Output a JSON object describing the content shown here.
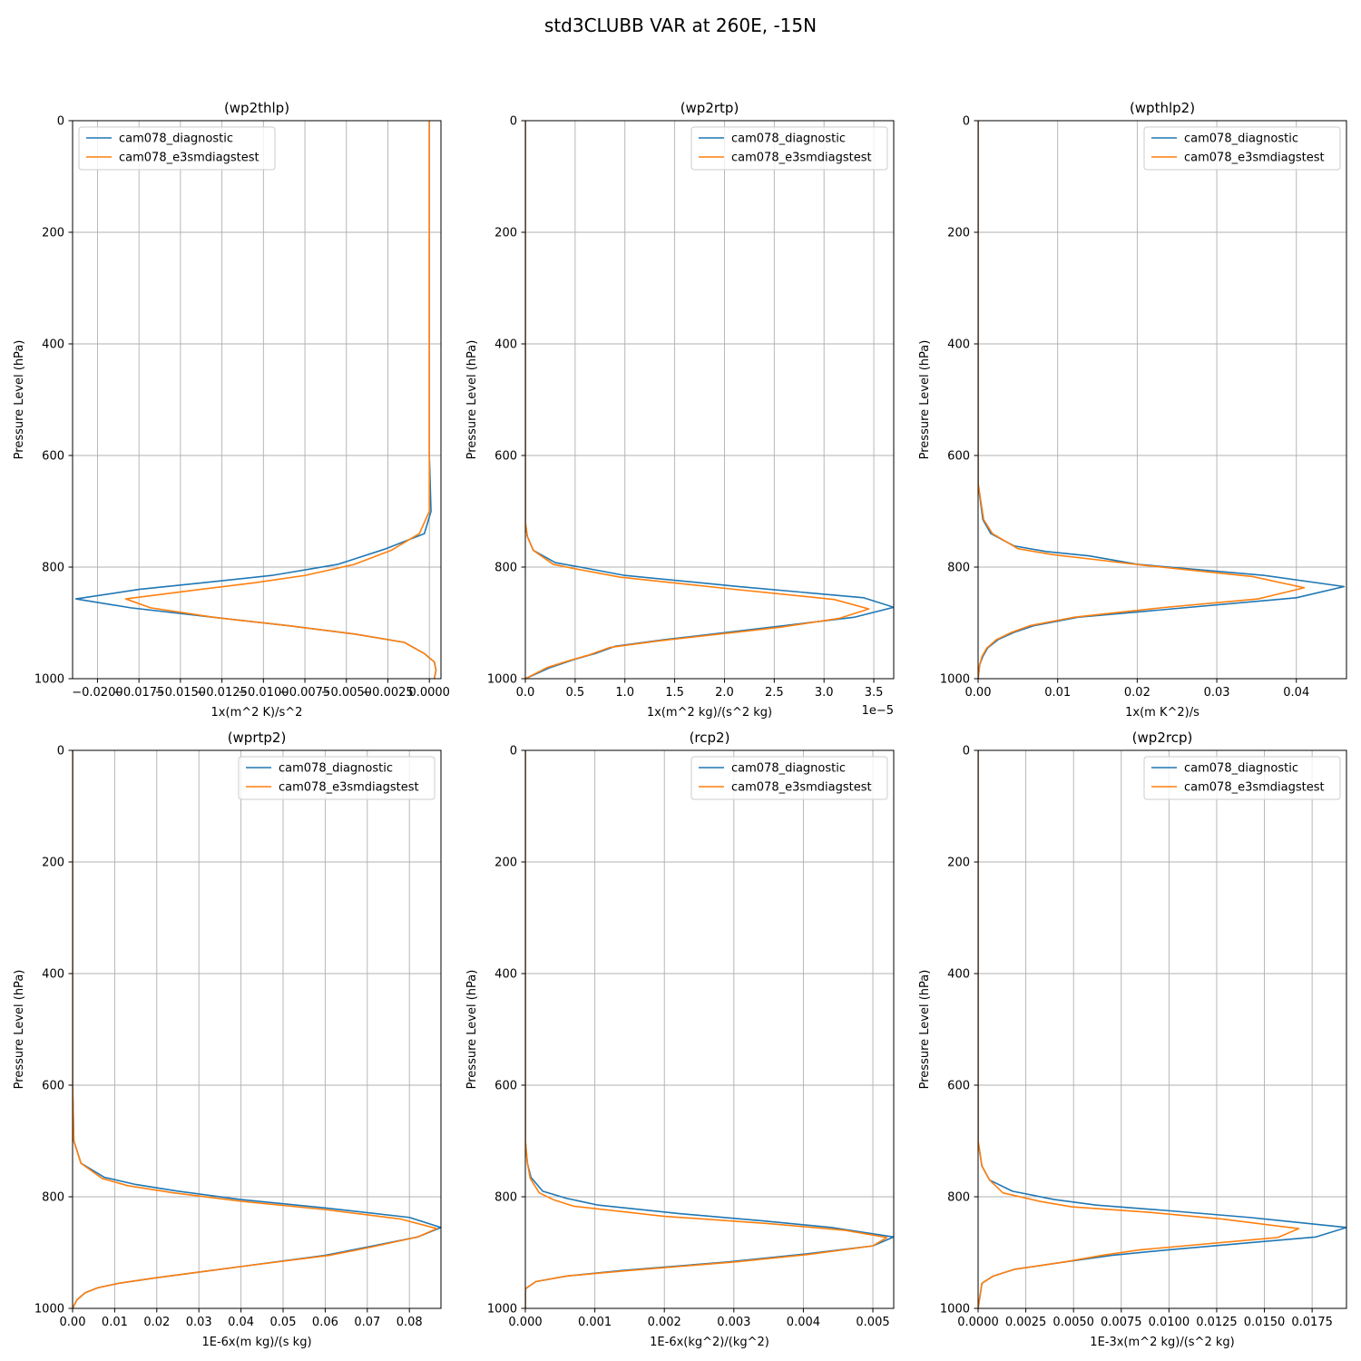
{
  "figure": {
    "title": "std3CLUBB VAR at 260E, -15N"
  },
  "colors": {
    "series_1": "#1f77b4",
    "series_2": "#ff7f0e",
    "grid": "#b0b0b0",
    "axis": "#000000"
  },
  "chart_data": [
    {
      "type": "line",
      "title": "(wp2thlp)",
      "xlabel": "1x(m^2 K)/s^2",
      "ylabel": "Pressure Level (hPa)",
      "xlim": [
        -0.0215,
        0.0007
      ],
      "ylim": [
        1000,
        0
      ],
      "xticks": [
        -0.02,
        -0.0175,
        -0.015,
        -0.0125,
        -0.01,
        -0.0075,
        -0.005,
        -0.0025,
        0.0
      ],
      "xtick_labels": [
        "−0.0200",
        "−0.0175",
        "−0.0150",
        "−0.0125",
        "−0.0100",
        "−0.0075",
        "−0.0050",
        "−0.0025",
        "0.0000"
      ],
      "yticks": [
        0,
        200,
        400,
        600,
        800,
        1000
      ],
      "ytick_labels": [
        "0",
        "200",
        "400",
        "600",
        "800",
        "1000"
      ],
      "grid": true,
      "legend_position": "top-left",
      "series": [
        {
          "name": "cam078_diagnostic",
          "x": [
            0.0,
            0.0,
            0.0,
            0.0,
            0.0001,
            -0.0003,
            -0.0027,
            -0.0055,
            -0.0095,
            -0.0136,
            -0.0175,
            -0.0213,
            -0.018,
            -0.013,
            -0.0085,
            -0.0045,
            -0.0015,
            -0.0003,
            0.0003,
            0.0004,
            0.0003
          ],
          "y": [
            0,
            200,
            400,
            600,
            700,
            740,
            768,
            795,
            815,
            828,
            840,
            857,
            873,
            890,
            905,
            920,
            935,
            955,
            970,
            985,
            1000
          ]
        },
        {
          "name": "cam078_e3smdiagstest",
          "x": [
            0.0,
            0.0,
            0.0,
            0.0,
            0.0,
            -0.0006,
            -0.0023,
            -0.0045,
            -0.0075,
            -0.0105,
            -0.0138,
            -0.0183,
            -0.0168,
            -0.013,
            -0.0085,
            -0.0045,
            -0.0015,
            -0.0003,
            0.0003,
            0.0004,
            0.0003
          ],
          "y": [
            0,
            200,
            400,
            600,
            700,
            740,
            770,
            795,
            815,
            828,
            840,
            857,
            873,
            890,
            905,
            920,
            935,
            955,
            970,
            985,
            1000
          ]
        }
      ]
    },
    {
      "type": "line",
      "title": "(wp2rtp)",
      "xlabel": "1x(m^2 kg)/(s^2 kg)",
      "ylabel": "Pressure Level (hPa)",
      "offset_text": "1e−5",
      "xlim": [
        0,
        3.7
      ],
      "ylim": [
        1000,
        0
      ],
      "xticks": [
        0,
        0.5,
        1.0,
        1.5,
        2.0,
        2.5,
        3.0,
        3.5
      ],
      "xtick_labels": [
        "0.0",
        "0.5",
        "1.0",
        "1.5",
        "2.0",
        "2.5",
        "3.0",
        "3.5"
      ],
      "yticks": [
        0,
        200,
        400,
        600,
        800,
        1000
      ],
      "ytick_labels": [
        "0",
        "200",
        "400",
        "600",
        "800",
        "1000"
      ],
      "grid": true,
      "legend_position": "top-right",
      "series": [
        {
          "name": "cam078_diagnostic",
          "x": [
            0.0,
            0.0,
            0.0,
            0.0,
            0.0,
            0.02,
            0.08,
            0.3,
            0.55,
            1.0,
            2.15,
            3.4,
            3.7,
            3.3,
            2.6,
            1.4,
            0.9,
            0.7,
            0.5,
            0.25,
            0.0
          ],
          "y": [
            0,
            200,
            400,
            600,
            720,
            745,
            770,
            792,
            800,
            815,
            835,
            855,
            872,
            890,
            905,
            930,
            942,
            955,
            965,
            980,
            1000
          ]
        },
        {
          "name": "cam078_e3smdiagstest",
          "x": [
            0.0,
            0.0,
            0.0,
            0.0,
            0.0,
            0.02,
            0.08,
            0.28,
            0.5,
            0.95,
            2.0,
            3.1,
            3.45,
            3.15,
            2.55,
            1.35,
            0.85,
            0.65,
            0.45,
            0.22,
            0.0
          ],
          "y": [
            0,
            200,
            400,
            600,
            720,
            745,
            770,
            795,
            803,
            818,
            838,
            858,
            875,
            892,
            908,
            932,
            944,
            957,
            967,
            980,
            1000
          ]
        }
      ]
    },
    {
      "type": "line",
      "title": "(wpthlp2)",
      "xlabel": "1x(m K^2)/s",
      "ylabel": "Pressure Level (hPa)",
      "xlim": [
        0,
        0.0463
      ],
      "ylim": [
        1000,
        0
      ],
      "xticks": [
        0.0,
        0.01,
        0.02,
        0.03,
        0.04
      ],
      "xtick_labels": [
        "0.00",
        "0.01",
        "0.02",
        "0.03",
        "0.04"
      ],
      "yticks": [
        0,
        200,
        400,
        600,
        800,
        1000
      ],
      "ytick_labels": [
        "0",
        "200",
        "400",
        "600",
        "800",
        "1000"
      ],
      "grid": true,
      "legend_position": "top-right",
      "series": [
        {
          "name": "cam078_diagnostic",
          "x": [
            0.0,
            0.0,
            0.0,
            0.0,
            0.0,
            0.0006,
            0.0016,
            0.0045,
            0.0085,
            0.014,
            0.02,
            0.036,
            0.046,
            0.04,
            0.0125,
            0.007,
            0.0045,
            0.0025,
            0.0012,
            0.0006,
            0.0002,
            0.0
          ],
          "y": [
            0,
            200,
            400,
            600,
            650,
            715,
            740,
            762,
            772,
            780,
            795,
            815,
            835,
            855,
            890,
            905,
            917,
            930,
            945,
            960,
            975,
            1000
          ]
        },
        {
          "name": "cam078_e3smdiagstest",
          "x": [
            0.0,
            0.0,
            0.0,
            0.0,
            0.0,
            0.0007,
            0.0018,
            0.005,
            0.0095,
            0.015,
            0.021,
            0.0345,
            0.041,
            0.0352,
            0.023,
            0.012,
            0.0065,
            0.0042,
            0.0023,
            0.0011,
            0.0005,
            0.0002,
            0.0
          ],
          "y": [
            0,
            200,
            400,
            600,
            650,
            715,
            740,
            767,
            778,
            787,
            797,
            817,
            837,
            857,
            873,
            890,
            905,
            917,
            930,
            945,
            960,
            975,
            1000
          ]
        }
      ]
    },
    {
      "type": "line",
      "title": "(wprtp2)",
      "xlabel": "1E-6x(m kg)/(s kg)",
      "ylabel": "Pressure Level (hPa)",
      "xlim": [
        0,
        0.0875
      ],
      "ylim": [
        1000,
        0
      ],
      "xticks": [
        0.0,
        0.01,
        0.02,
        0.03,
        0.04,
        0.05,
        0.06,
        0.07,
        0.08
      ],
      "xtick_labels": [
        "0.00",
        "0.01",
        "0.02",
        "0.03",
        "0.04",
        "0.05",
        "0.06",
        "0.07",
        "0.08"
      ],
      "yticks": [
        0,
        200,
        400,
        600,
        800,
        1000
      ],
      "ytick_labels": [
        "0",
        "200",
        "400",
        "600",
        "800",
        "1000"
      ],
      "grid": true,
      "legend_position": "top-right",
      "series": [
        {
          "name": "cam078_diagnostic",
          "x": [
            0.0,
            0.0,
            0.0,
            0.0,
            0.0003,
            0.002,
            0.0075,
            0.015,
            0.025,
            0.04,
            0.06,
            0.08,
            0.0875,
            0.082,
            0.07,
            0.06,
            0.04,
            0.02,
            0.011,
            0.006,
            0.003,
            0.001,
            0.0
          ],
          "y": [
            0,
            200,
            400,
            600,
            700,
            740,
            765,
            778,
            790,
            805,
            820,
            837,
            855,
            872,
            890,
            905,
            925,
            945,
            955,
            963,
            972,
            985,
            1000
          ]
        },
        {
          "name": "cam078_e3smdiagstest",
          "x": [
            0.0,
            0.0,
            0.0,
            0.0,
            0.0003,
            0.002,
            0.007,
            0.013,
            0.024,
            0.04,
            0.06,
            0.078,
            0.0865,
            0.082,
            0.071,
            0.061,
            0.04,
            0.02,
            0.011,
            0.006,
            0.003,
            0.001,
            0.0
          ],
          "y": [
            0,
            200,
            400,
            600,
            700,
            740,
            767,
            780,
            793,
            808,
            823,
            840,
            857,
            872,
            890,
            905,
            925,
            945,
            955,
            963,
            972,
            985,
            1000
          ]
        }
      ]
    },
    {
      "type": "line",
      "title": "(rcp2)",
      "xlabel": "1E-6x(kg^2)/(kg^2)",
      "ylabel": "Pressure Level (hPa)",
      "xlim": [
        0,
        0.0053
      ],
      "ylim": [
        1000,
        0
      ],
      "xticks": [
        0.0,
        0.001,
        0.002,
        0.003,
        0.004,
        0.005
      ],
      "xtick_labels": [
        "0.000",
        "0.001",
        "0.002",
        "0.003",
        "0.004",
        "0.005"
      ],
      "yticks": [
        0,
        200,
        400,
        600,
        800,
        1000
      ],
      "ytick_labels": [
        "0",
        "200",
        "400",
        "600",
        "800",
        "1000"
      ],
      "grid": true,
      "legend_position": "top-right",
      "series": [
        {
          "name": "cam078_diagnostic",
          "x": [
            0.0,
            0.0,
            0.0,
            0.0,
            0.0,
            3e-05,
            8e-05,
            0.00025,
            0.0006,
            0.00105,
            0.0022,
            0.0034,
            0.0044,
            0.0053,
            0.005,
            0.004,
            0.0029,
            0.0014,
            0.0006,
            0.00015,
            0.0,
            0.0
          ],
          "y": [
            0,
            200,
            400,
            600,
            700,
            740,
            765,
            790,
            803,
            815,
            830,
            843,
            855,
            872,
            888,
            903,
            917,
            932,
            942,
            952,
            965,
            1000
          ]
        },
        {
          "name": "cam078_e3smdiagstest",
          "x": [
            0.0,
            0.0,
            0.0,
            0.0,
            0.0,
            3e-05,
            7e-05,
            0.0002,
            0.0004,
            0.0007,
            0.002,
            0.0035,
            0.0046,
            0.0052,
            0.005,
            0.0041,
            0.003,
            0.0015,
            0.0006,
            0.00015,
            0.0,
            0.0
          ],
          "y": [
            0,
            200,
            400,
            600,
            700,
            740,
            767,
            793,
            805,
            817,
            835,
            848,
            860,
            873,
            888,
            903,
            917,
            932,
            942,
            952,
            965,
            1000
          ]
        }
      ]
    },
    {
      "type": "line",
      "title": "(wp2rcp)",
      "xlabel": "1E-3x(m^2 kg)/(s^2 kg)",
      "ylabel": "Pressure Level (hPa)",
      "xlim": [
        0,
        0.0193
      ],
      "ylim": [
        1000,
        0
      ],
      "xticks": [
        0.0,
        0.0025,
        0.005,
        0.0075,
        0.01,
        0.0125,
        0.015,
        0.0175
      ],
      "xtick_labels": [
        "0.0000",
        "0.0025",
        "0.0050",
        "0.0075",
        "0.0100",
        "0.0125",
        "0.0150",
        "0.0175"
      ],
      "yticks": [
        0,
        200,
        400,
        600,
        800,
        1000
      ],
      "ytick_labels": [
        "0",
        "200",
        "400",
        "600",
        "800",
        "1000"
      ],
      "grid": true,
      "legend_position": "top-right",
      "series": [
        {
          "name": "cam078_diagnostic",
          "x": [
            0.0,
            0.0,
            0.0,
            0.0,
            0.0,
            0.0002,
            0.0006,
            0.0018,
            0.004,
            0.0062,
            0.01,
            0.0142,
            0.0193,
            0.0177,
            0.01,
            0.007,
            0.0045,
            0.0019,
            0.0008,
            0.0002,
            0.0
          ],
          "y": [
            0,
            200,
            400,
            600,
            700,
            745,
            770,
            790,
            805,
            815,
            825,
            837,
            855,
            872,
            895,
            905,
            917,
            930,
            942,
            955,
            1000
          ]
        },
        {
          "name": "cam078_e3smdiagstest",
          "x": [
            0.0,
            0.0,
            0.0,
            0.0,
            0.0,
            0.0002,
            0.0006,
            0.0013,
            0.0032,
            0.0049,
            0.009,
            0.0128,
            0.0168,
            0.0157,
            0.0085,
            0.0065,
            0.0045,
            0.0019,
            0.0008,
            0.0002,
            0.0
          ],
          "y": [
            0,
            200,
            400,
            600,
            700,
            745,
            770,
            793,
            808,
            818,
            828,
            840,
            857,
            873,
            895,
            905,
            917,
            930,
            942,
            955,
            1000
          ]
        }
      ]
    }
  ]
}
